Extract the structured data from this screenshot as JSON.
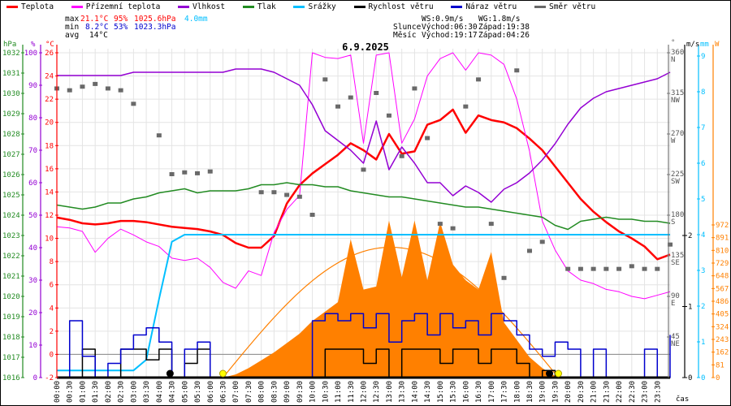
{
  "legend": [
    {
      "label": "Teplota",
      "color": "#ff0000"
    },
    {
      "label": "Přízemní teplota",
      "color": "#ff00ff"
    },
    {
      "label": "Vlhkost",
      "color": "#9400d3"
    },
    {
      "label": "Tlak",
      "color": "#228b22"
    },
    {
      "label": "Srážky",
      "color": "#00bfff"
    },
    {
      "label": "Rychlost větru",
      "color": "#000000"
    },
    {
      "label": "Náraz větru",
      "color": "#0000cd"
    },
    {
      "label": "Směr větru",
      "color": "#696969"
    }
  ],
  "stats": {
    "max_label": "max",
    "max_temp": "21.1°C",
    "max_hum": "95%",
    "max_press": "1025.6hPa",
    "max_rain": "4.0mm",
    "min_label": "min",
    "min_temp": "8.2°C",
    "min_hum": "53%",
    "min_press": "1023.3hPa",
    "avg_label": "avg",
    "avg_temp": "14°C"
  },
  "astro": {
    "ws": "WS:0.9m/s",
    "wg": "WG:1.8m/s",
    "sun_label": "Slunce",
    "sun_rise": "Východ:06:30",
    "sun_set": "Západ:19:38",
    "moon_label": "Měsíc",
    "moon_rise": "Východ:19:17",
    "moon_set": "Západ:04:26"
  },
  "chart_data": {
    "type": "line",
    "title": "6.9.2025",
    "xlabel": "čas",
    "x_start_hour": 0,
    "x_step_hours": 0.5,
    "time_labels": [
      "00:00",
      "00:30",
      "01:00",
      "01:30",
      "02:00",
      "02:30",
      "03:00",
      "03:30",
      "04:00",
      "04:30",
      "05:00",
      "05:30",
      "06:00",
      "06:30",
      "07:00",
      "07:30",
      "08:00",
      "08:30",
      "09:00",
      "09:30",
      "10:00",
      "10:30",
      "11:00",
      "11:30",
      "12:00",
      "12:30",
      "13:00",
      "13:30",
      "14:00",
      "14:30",
      "15:00",
      "15:30",
      "16:00",
      "16:30",
      "17:00",
      "17:30",
      "18:00",
      "18:30",
      "19:00",
      "19:30",
      "20:00",
      "20:30",
      "21:00",
      "21:30",
      "22:00",
      "22:30",
      "23:00",
      "23:30"
    ],
    "axes": {
      "pressure": {
        "unit": "hPa",
        "range": [
          1016,
          1032
        ],
        "ticks": [
          1016,
          1017,
          1018,
          1019,
          1020,
          1021,
          1022,
          1023,
          1024,
          1025,
          1026,
          1027,
          1028,
          1029,
          1030,
          1031,
          1032
        ]
      },
      "humidity": {
        "unit": "%",
        "range": [
          0,
          100
        ],
        "ticks": [
          0,
          10,
          20,
          30,
          40,
          50,
          60,
          70,
          80,
          90,
          100
        ]
      },
      "temperature": {
        "unit": "°C",
        "range": [
          -2,
          26
        ],
        "ticks": [
          -2,
          0,
          2,
          4,
          6,
          8,
          10,
          12,
          14,
          16,
          18,
          20,
          22,
          24,
          26
        ]
      },
      "direction": {
        "unit": "°",
        "range": [
          0,
          360
        ],
        "ticks": [
          {
            "v": 45,
            "l": "45",
            "d": "NE"
          },
          {
            "v": 90,
            "l": "90",
            "d": "E"
          },
          {
            "v": 135,
            "l": "135",
            "d": "SE"
          },
          {
            "v": 180,
            "l": "180",
            "d": "S"
          },
          {
            "v": 225,
            "l": "225",
            "d": "SW"
          },
          {
            "v": 270,
            "l": "270",
            "d": "W"
          },
          {
            "v": 315,
            "l": "315",
            "d": "NW"
          },
          {
            "v": 360,
            "l": "360",
            "d": "N"
          }
        ]
      },
      "wind": {
        "unit": "m/s",
        "range": [
          0,
          2.3
        ],
        "ticks": [
          0,
          1,
          2
        ]
      },
      "rain": {
        "unit": "mm",
        "range": [
          0,
          9
        ],
        "ticks": [
          0,
          1,
          2,
          3,
          4,
          5,
          6,
          7,
          8,
          9
        ]
      },
      "radiation": {
        "unit": "W",
        "range": [
          0,
          972
        ],
        "ticks": [
          0,
          81,
          162,
          243,
          324,
          405,
          486,
          567,
          648,
          729,
          810,
          891,
          972
        ]
      }
    },
    "series": [
      {
        "name": "Teplota",
        "axis": "temperature",
        "color": "#ff0000",
        "values": [
          11.8,
          11.6,
          11.3,
          11.2,
          11.3,
          11.5,
          11.5,
          11.4,
          11.2,
          11.0,
          10.9,
          10.8,
          10.6,
          10.3,
          9.6,
          9.2,
          9.2,
          10.2,
          13.0,
          14.6,
          15.6,
          16.4,
          17.2,
          18.2,
          17.6,
          16.8,
          19.0,
          17.3,
          17.5,
          19.8,
          20.2,
          21.1,
          19.1,
          20.6,
          20.2,
          20.0,
          19.5,
          18.6,
          17.6,
          16.2,
          14.8,
          13.4,
          12.3,
          11.4,
          10.6,
          10.0,
          9.3,
          8.2,
          8.6
        ]
      },
      {
        "name": "Přízemní teplota",
        "axis": "temperature",
        "color": "#ff00ff",
        "values": [
          11.0,
          10.9,
          10.6,
          8.8,
          10.0,
          10.8,
          10.3,
          9.7,
          9.3,
          8.3,
          8.1,
          8.3,
          7.5,
          6.2,
          5.7,
          7.2,
          6.8,
          10.5,
          12.5,
          13.7,
          26.0,
          25.6,
          25.5,
          25.8,
          18.2,
          25.8,
          26.0,
          18.2,
          20.3,
          24.0,
          25.5,
          26.0,
          24.5,
          26.0,
          25.8,
          25.0,
          22.0,
          17.5,
          11.5,
          9.0,
          7.2,
          6.4,
          6.1,
          5.6,
          5.4,
          5.0,
          4.8,
          5.1,
          5.4
        ]
      },
      {
        "name": "Vlhkost",
        "axis": "humidity",
        "color": "#9400d3",
        "values": [
          93,
          93,
          93,
          93,
          93,
          93,
          94,
          94,
          94,
          94,
          94,
          94,
          94,
          94,
          95,
          95,
          95,
          94,
          92,
          90,
          84,
          76,
          73,
          70,
          66,
          79,
          64,
          71,
          66,
          60,
          60,
          56,
          59,
          57,
          54,
          58,
          60,
          63,
          67,
          72,
          78,
          83,
          86,
          88,
          89,
          90,
          91,
          92,
          94
        ]
      },
      {
        "name": "Tlak",
        "axis": "pressure",
        "color": "#228b22",
        "values": [
          1024.5,
          1024.4,
          1024.3,
          1024.4,
          1024.6,
          1024.6,
          1024.8,
          1024.9,
          1025.1,
          1025.2,
          1025.3,
          1025.1,
          1025.2,
          1025.2,
          1025.2,
          1025.3,
          1025.5,
          1025.5,
          1025.6,
          1025.5,
          1025.5,
          1025.4,
          1025.4,
          1025.2,
          1025.1,
          1025.0,
          1024.9,
          1024.9,
          1024.8,
          1024.7,
          1024.6,
          1024.5,
          1024.4,
          1024.4,
          1024.3,
          1024.2,
          1024.1,
          1024.0,
          1023.9,
          1023.5,
          1023.3,
          1023.7,
          1023.8,
          1023.9,
          1023.8,
          1023.8,
          1023.7,
          1023.7,
          1023.6
        ]
      },
      {
        "name": "Srážky",
        "axis": "rain",
        "color": "#00bfff",
        "values": [
          0.2,
          0.2,
          0.2,
          0.2,
          0.2,
          0.2,
          0.2,
          0.5,
          2.2,
          3.8,
          4.0,
          4.0,
          4.0,
          4.0,
          4.0,
          4.0,
          4.0,
          4.0,
          4.0,
          4.0,
          4.0,
          4.0,
          4.0,
          4.0,
          4.0,
          4.0,
          4.0,
          4.0,
          4.0,
          4.0,
          4.0,
          4.0,
          4.0,
          4.0,
          4.0,
          4.0,
          4.0,
          4.0,
          4.0,
          4.0,
          4.0,
          4.0,
          4.0,
          4.0,
          4.0,
          4.0,
          4.0,
          4.0,
          4.0
        ]
      },
      {
        "name": "Rychlost větru",
        "axis": "wind",
        "color": "#000000",
        "values": [
          0,
          0,
          0.4,
          0,
          0,
          0.4,
          0.4,
          0.25,
          0.4,
          0,
          0.2,
          0.4,
          0,
          0,
          0,
          0,
          0,
          0,
          0,
          0,
          0,
          0.4,
          0.4,
          0.4,
          0.2,
          0.4,
          0,
          0.4,
          0.4,
          0.4,
          0.2,
          0.4,
          0.4,
          0.2,
          0.4,
          0.4,
          0.2,
          0,
          0.1,
          0,
          0,
          0,
          0,
          0,
          0,
          0,
          0,
          0,
          0
        ]
      },
      {
        "name": "Náraz větru",
        "axis": "wind",
        "color": "#0000cd",
        "values": [
          0,
          0.8,
          0.3,
          0,
          0.2,
          0.4,
          0.6,
          0.7,
          0.5,
          0,
          0.4,
          0.5,
          0,
          0,
          0,
          0,
          0,
          0,
          0,
          0,
          0.8,
          0.9,
          0.8,
          0.9,
          0.7,
          0.9,
          0.5,
          0.8,
          0.9,
          0.6,
          0.9,
          0.7,
          0.8,
          0.6,
          0.9,
          0.8,
          0.6,
          0.4,
          0.3,
          0.5,
          0.4,
          0,
          0.4,
          0,
          0,
          0,
          0.4,
          0,
          0.6
        ]
      },
      {
        "name": "Směr větru",
        "axis": "direction",
        "color": "#696969",
        "values": [
          320,
          318,
          322,
          325,
          320,
          318,
          303,
          null,
          268,
          225,
          227,
          226,
          228,
          null,
          null,
          null,
          205,
          205,
          202,
          200,
          180,
          330,
          300,
          310,
          230,
          315,
          290,
          245,
          320,
          265,
          170,
          165,
          300,
          330,
          170,
          110,
          340,
          140,
          150,
          null,
          120,
          120,
          120,
          120,
          120,
          123,
          120,
          120,
          147
        ]
      },
      {
        "name": "Sluneční záření",
        "axis": "radiation",
        "color": "#ff8c00",
        "values": [
          0,
          0,
          0,
          0,
          0,
          0,
          0,
          0,
          0,
          0,
          0,
          0,
          0,
          0,
          20,
          60,
          110,
          160,
          220,
          280,
          360,
          420,
          480,
          880,
          560,
          580,
          1000,
          640,
          1000,
          620,
          990,
          720,
          620,
          560,
          800,
          350,
          240,
          130,
          60,
          10,
          0,
          0,
          0,
          0,
          0,
          0,
          0,
          0,
          0
        ]
      }
    ],
    "clear_sky_radiation": {
      "start_hour": 6.5,
      "end_hour": 19.63,
      "peak_w": 830
    },
    "markers": {
      "sunrise_hour": 6.5,
      "sunset_hour": 19.63,
      "moonrise_hour": 19.28,
      "moonset_hour": 4.43
    },
    "grid": true
  }
}
